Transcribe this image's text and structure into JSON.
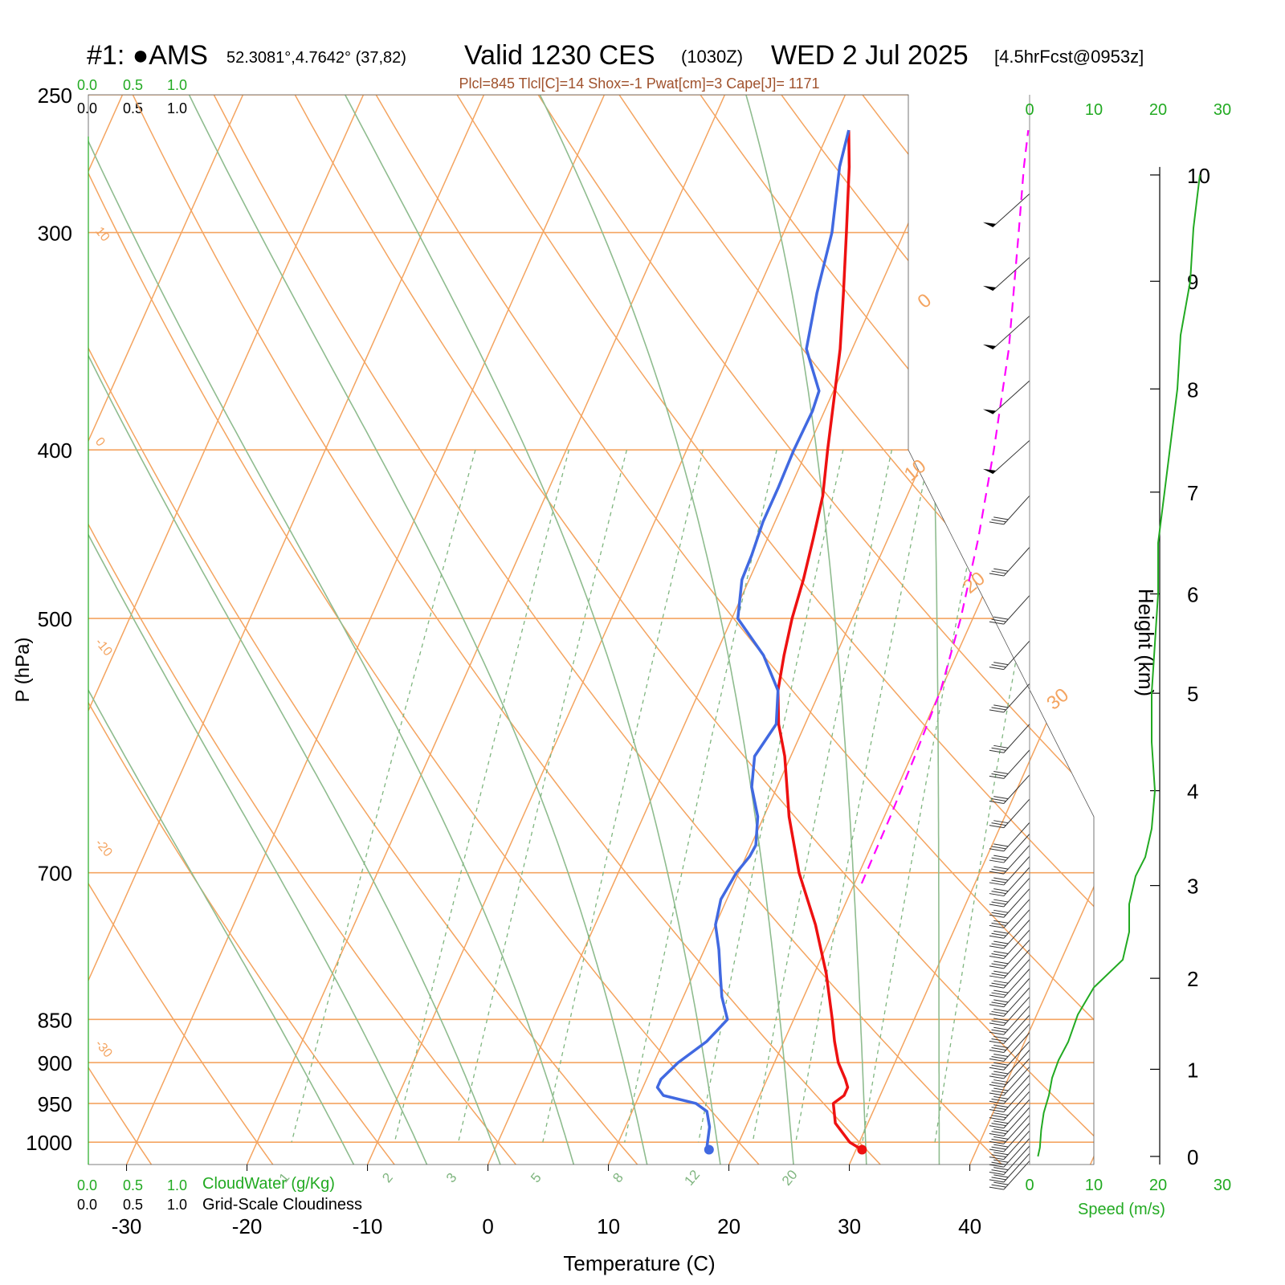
{
  "header": {
    "station": "#1: ●AMS",
    "coords": "52.3081°,4.7642° (37,82)",
    "valid": "Valid 1230 CES",
    "zulu": "(1030Z)",
    "date": "WED 2 Jul 2025",
    "forecast": "[4.5hrFcst@0953z]",
    "indices": "Plcl=845 Tlcl[C]=14 Shox=-1 Pwat[cm]=3 Cape[J]= 1171"
  },
  "colors": {
    "temperature": "#ee1111",
    "dewpoint": "#4169e1",
    "parcel": "#ff00ff",
    "isotherm": "#f4a460",
    "dry_adiabat": "#f4a460",
    "moist_adiabat": "#8fbc8f",
    "mixing_ratio": "#7fb57f",
    "speed": "#22aa22",
    "indices": "#a0522d"
  },
  "chart_data": {
    "type": "line",
    "title": "Valid 1230 CES (1030Z) WED 2 Jul 2025",
    "xlabel": "Temperature (C)",
    "ylabel": "P (hPa)",
    "xlim": [
      -33,
      51
    ],
    "ylim": [
      1030,
      250
    ],
    "y_scale": "log",
    "x_ticks": [
      -30,
      -20,
      -10,
      0,
      10,
      20,
      30,
      40
    ],
    "p_ticks": [
      250,
      300,
      400,
      500,
      700,
      850,
      900,
      950,
      1000
    ],
    "height_axis": {
      "label": "Height (km)",
      "ticks": [
        "0",
        "1",
        "2",
        "3",
        "4",
        "5",
        "6",
        "7",
        "8",
        "9",
        "10"
      ],
      "km": [
        0,
        1,
        2,
        3,
        4,
        5,
        6,
        7,
        8,
        9,
        10
      ],
      "p": [
        1019,
        908,
        805,
        712,
        628,
        552,
        484,
        423,
        369,
        320,
        278
      ]
    },
    "cloud_axes": {
      "top_green": [
        "0.0",
        "0.5",
        "1.0"
      ],
      "top_black": [
        "0.0",
        "0.5",
        "1.0"
      ],
      "bottom_green": [
        "0.0",
        "0.5",
        "1.0"
      ],
      "bottom_black": [
        "0.0",
        "0.5",
        "1.0"
      ],
      "cloudwater_label": "CloudWater (g/Kg)",
      "cloudiness_label": "Grid-Scale Cloudiness"
    },
    "speed_axis": {
      "label": "Speed (m/s)",
      "ticks": [
        "0",
        "10",
        "20",
        "30"
      ],
      "values": [
        0,
        10,
        20,
        30
      ],
      "xlim": [
        0,
        30
      ]
    },
    "isotherm_labels": [
      "-30",
      "-20",
      "-10",
      "0",
      "10",
      "20",
      "30"
    ],
    "isotherm_label_values": [
      -30,
      -20,
      -10,
      0,
      10,
      20,
      30
    ],
    "dry_adiabat_labels": [
      "10",
      "0",
      "-10",
      "-20",
      "-30"
    ],
    "dry_adiabat_label_values": [
      10,
      0,
      -10,
      -20,
      -30
    ],
    "mixing_ratio_labels": [
      "1",
      "2",
      "3",
      "5",
      "8",
      "12",
      "20"
    ],
    "mixing_ratio_values": [
      1,
      2,
      3,
      5,
      8,
      12,
      20
    ],
    "series": [
      {
        "name": "temperature",
        "p": [
          1010,
          1000,
          975,
          950,
          940,
          930,
          920,
          900,
          875,
          850,
          800,
          750,
          700,
          650,
          600,
          575,
          550,
          525,
          500,
          475,
          450,
          425,
          400,
          375,
          350,
          325,
          300,
          275,
          262
        ],
        "t": [
          30.5,
          29.2,
          27.3,
          26.4,
          27.0,
          27.0,
          26.5,
          25.3,
          24.2,
          23.2,
          21.0,
          18.3,
          15.0,
          12.1,
          9.5,
          7.8,
          6.5,
          5.7,
          5.0,
          4.5,
          3.8,
          3.0,
          1.7,
          0.4,
          -1.0,
          -2.8,
          -4.8,
          -7.0,
          -8.4
        ]
      },
      {
        "name": "dewpoint",
        "p": [
          1010,
          1005,
          1000,
          980,
          960,
          950,
          940,
          930,
          920,
          900,
          875,
          850,
          825,
          800,
          775,
          750,
          725,
          700,
          685,
          675,
          650,
          625,
          600,
          575,
          550,
          525,
          500,
          475,
          460,
          440,
          420,
          400,
          380,
          370,
          350,
          325,
          300,
          275,
          262
        ],
        "t": [
          17.8,
          17.5,
          17.4,
          17.0,
          16.2,
          15.0,
          12.0,
          11.2,
          11.2,
          12.0,
          13.6,
          14.5,
          13.2,
          12.2,
          11.2,
          10.0,
          9.5,
          9.8,
          10.3,
          10.4,
          9.5,
          7.9,
          7.0,
          7.6,
          6.5,
          4.0,
          0.5,
          -0.6,
          -0.7,
          -1.0,
          -1.0,
          -1.1,
          -1.0,
          -1.2,
          -3.8,
          -5.0,
          -6.0,
          -7.8,
          -8.4
        ]
      },
      {
        "name": "parcel",
        "p": [
          710,
          650,
          600,
          550,
          500,
          450,
          400,
          350,
          300,
          275,
          262
        ],
        "t": [
          20.6,
          20.5,
          20.3,
          20.0,
          19.0,
          17.5,
          15.5,
          13.0,
          9.5,
          7.5,
          6.5
        ]
      }
    ],
    "wind_speed_profile": {
      "height_km": [
        0,
        0.1,
        0.3,
        0.5,
        0.7,
        0.9,
        1.1,
        1.3,
        1.6,
        1.9,
        2.2,
        2.5,
        2.8,
        3.1,
        3.3,
        3.6,
        4.0,
        4.5,
        5.0,
        5.5,
        6.0,
        6.5,
        7.0,
        7.5,
        8.0,
        8.5,
        9.0,
        9.5,
        10.0
      ],
      "speed": [
        1.3,
        1.6,
        1.8,
        2.2,
        3.0,
        3.5,
        4.5,
        6.0,
        7.5,
        10.0,
        14.5,
        15.5,
        15.5,
        16.5,
        18.0,
        19.0,
        19.5,
        19.0,
        19.0,
        19.5,
        20.0,
        20.0,
        21.0,
        22.0,
        23.0,
        23.5,
        25.0,
        25.5,
        26.5
      ]
    },
    "wind_barb_pressures": [
      1025,
      1015,
      1005,
      995,
      985,
      975,
      965,
      955,
      945,
      935,
      925,
      915,
      905,
      895,
      885,
      875,
      865,
      855,
      845,
      835,
      825,
      815,
      805,
      795,
      785,
      775,
      765,
      755,
      745,
      735,
      725,
      715,
      705,
      695,
      685,
      675,
      665,
      655,
      635,
      615,
      595,
      575,
      545,
      515,
      485,
      455,
      425,
      395,
      365,
      335,
      310,
      285
    ]
  }
}
